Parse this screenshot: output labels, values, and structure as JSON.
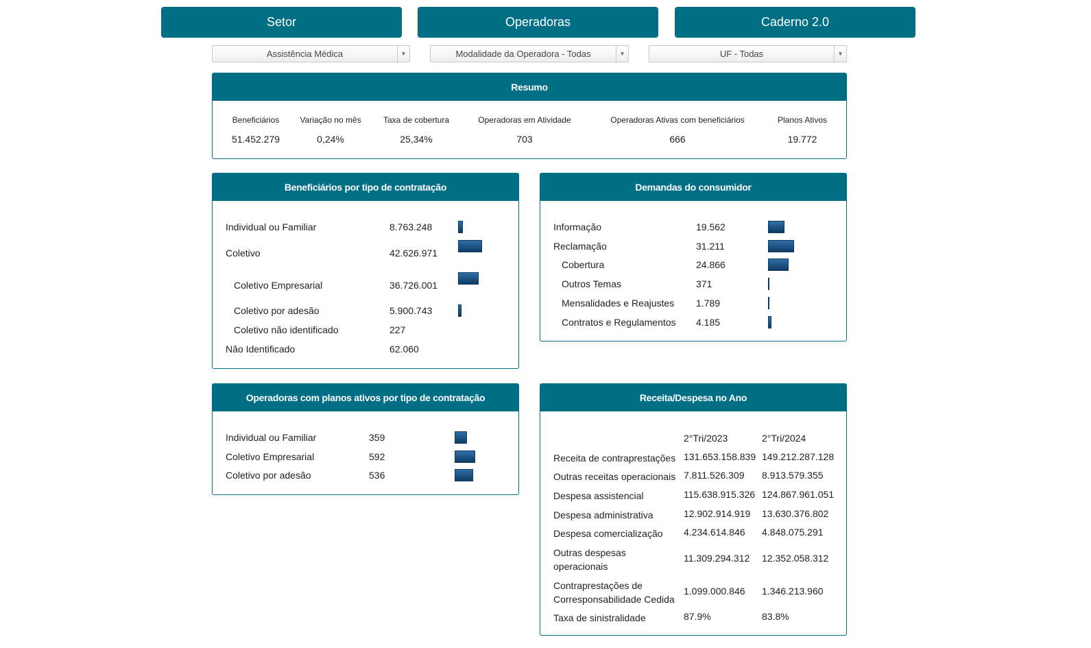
{
  "nav": {
    "buttons": [
      "Setor",
      "Operadoras",
      "Caderno 2.0"
    ]
  },
  "filters": {
    "segment": "Assistência Médica",
    "modality": "Modalidade da Operadora - Todas",
    "uf": "UF - Todas"
  },
  "resumo": {
    "title": "Resumo",
    "items": [
      {
        "label": "Beneficiários",
        "value": "51.452.279"
      },
      {
        "label": "Variação no mês",
        "value": "0,24%"
      },
      {
        "label": "Taxa de cobertura",
        "value": "25,34%"
      },
      {
        "label": "Operadoras em Atividade",
        "value": "703"
      },
      {
        "label": "Operadoras Ativas com beneficiários",
        "value": "666"
      },
      {
        "label": "Planos Ativos",
        "value": "19.772"
      }
    ]
  },
  "beneficiarios": {
    "title": "Beneficiários por tipo de contratação",
    "rows": [
      {
        "label": "Individual ou Familiar",
        "value": "8.763.248",
        "n": 8763248
      },
      {
        "label": "Coletivo",
        "value": "42.626.971",
        "n": 42626971
      },
      {
        "label": "Coletivo Empresarial",
        "value": "36.726.001",
        "n": 36726001
      },
      {
        "label": "Coletivo por adesão",
        "value": "5.900.743",
        "n": 5900743
      },
      {
        "label": "Coletivo não identificado",
        "value": "227",
        "n": 227
      },
      {
        "label": "Não Identificado",
        "value": "62.060",
        "n": 62060
      }
    ]
  },
  "demandas": {
    "title": "Demandas do consumidor",
    "rows": [
      {
        "label": "Informação",
        "value": "19.562",
        "n": 19562
      },
      {
        "label": "Reclamação",
        "value": "31.211",
        "n": 31211
      },
      {
        "label": "Cobertura",
        "value": "24.866",
        "n": 24866
      },
      {
        "label": "Outros Temas",
        "value": "371",
        "n": 371
      },
      {
        "label": "Mensalidades e Reajustes",
        "value": "1.789",
        "n": 1789
      },
      {
        "label": "Contratos e Regulamentos",
        "value": "4.185",
        "n": 4185
      }
    ]
  },
  "operadoras": {
    "title": "Operadoras com planos ativos por tipo de contratação",
    "rows": [
      {
        "label": "Individual ou Familiar",
        "value": "359",
        "n": 359
      },
      {
        "label": "Coletivo Empresarial",
        "value": "592",
        "n": 592
      },
      {
        "label": "Coletivo por adesão",
        "value": "536",
        "n": 536
      }
    ]
  },
  "receita": {
    "title": "Receita/Despesa no Ano",
    "col1": "2°Tri/2023",
    "col2": "2°Tri/2024",
    "rows": [
      {
        "label": "Receita de contraprestações",
        "v1": "131.653.158.839",
        "v2": "149.212.287.128"
      },
      {
        "label": "Outras receitas operacionais",
        "v1": "7.811.526.309",
        "v2": "8.913.579.355"
      },
      {
        "label": "Despesa assistencial",
        "v1": "115.638.915.326",
        "v2": "124.867.961.051"
      },
      {
        "label": "Despesa administrativa",
        "v1": "12.902.914.919",
        "v2": "13.630.376.802"
      },
      {
        "label": "Despesa comercialização",
        "v1": "4.234.614.846",
        "v2": "4.848.075.291"
      },
      {
        "label": "Outras despesas operacionais",
        "v1": "11.309.294.312",
        "v2": "12.352.058.312"
      },
      {
        "label": "Contraprestações de Corresponsabilidade Cedida",
        "v1": "1.099.000.846",
        "v2": "1.346.213.960"
      },
      {
        "label": "Taxa de sinistralidade",
        "v1": "87.9%",
        "v2": "83.8%"
      }
    ]
  }
}
